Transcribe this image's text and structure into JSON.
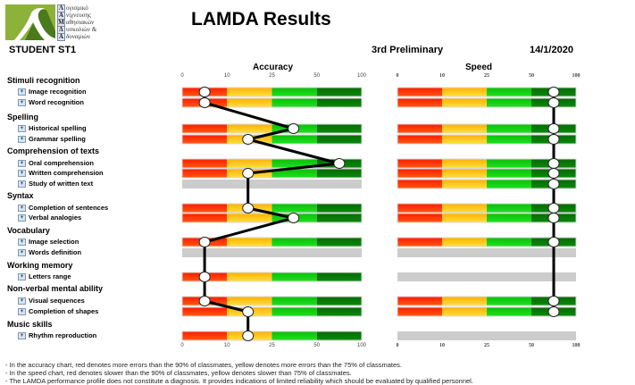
{
  "header": {
    "title": "LAMDA Results",
    "student": "STUDENT ST1",
    "session": "3rd Preliminary",
    "date": "14/1/2020",
    "logo": {
      "glyph": "λ",
      "lines": [
        {
          "cap": "Λ",
          "text": "ογισμικό"
        },
        {
          "cap": "Α",
          "text": "νίχνευσης"
        },
        {
          "cap": "Μ",
          "text": "αθησιακών"
        },
        {
          "cap": "Δ",
          "text": "υσκολιών &"
        },
        {
          "cap": "Α",
          "text": "δυναμιών"
        }
      ]
    }
  },
  "chart_data": [
    {
      "type": "bar",
      "title": "Accuracy",
      "xlabel": "",
      "ylabel": "",
      "tick_labels": [
        "0",
        "10",
        "25",
        "50",
        "100"
      ],
      "zones": [
        {
          "from": 0,
          "to": 10,
          "color": "#ff2a00",
          "meaning": "red"
        },
        {
          "from": 10,
          "to": 25,
          "color": "#ffc800",
          "meaning": "yellow"
        },
        {
          "from": 25,
          "to": 50,
          "color": "#10d010",
          "meaning": "green"
        },
        {
          "from": 50,
          "to": 100,
          "color": "#087a08",
          "meaning": "dark green"
        }
      ],
      "categories": [
        "Image recognition",
        "Word recognition",
        "Historical spelling",
        "Grammar spelling",
        "Oral comprehension",
        "Written comprehension",
        "Study of written text",
        "Completion of sentences",
        "Verbal analogies",
        "Image selection",
        "Words definition",
        "Letters range",
        "Visual sequences",
        "Completion of shapes",
        "Rhythm reproduction"
      ],
      "values": [
        5,
        5,
        37,
        17,
        75,
        17,
        null,
        17,
        37,
        5,
        null,
        5,
        5,
        17,
        17
      ]
    },
    {
      "type": "bar",
      "title": "Speed",
      "xlabel": "",
      "ylabel": "",
      "tick_labels": [
        "0",
        "10",
        "25",
        "50",
        "100"
      ],
      "zones": [
        {
          "from": 0,
          "to": 10,
          "color": "#ff2a00",
          "meaning": "red"
        },
        {
          "from": 10,
          "to": 25,
          "color": "#ffc800",
          "meaning": "yellow"
        },
        {
          "from": 25,
          "to": 50,
          "color": "#10d010",
          "meaning": "green"
        },
        {
          "from": 50,
          "to": 100,
          "color": "#087a08",
          "meaning": "dark green"
        }
      ],
      "categories": [
        "Image recognition",
        "Word recognition",
        "Historical spelling",
        "Grammar spelling",
        "Oral comprehension",
        "Written comprehension",
        "Study of written text",
        "Completion of sentences",
        "Verbal analogies",
        "Image selection",
        "Words definition",
        "Letters range",
        "Visual sequences",
        "Completion of shapes",
        "Rhythm reproduction"
      ],
      "values": [
        75,
        75,
        75,
        75,
        75,
        75,
        75,
        75,
        75,
        75,
        null,
        null,
        75,
        75,
        null
      ]
    }
  ],
  "groups": [
    {
      "name": "Stimuli recognition",
      "items": [
        "Image recognition",
        "Word recognition"
      ]
    },
    {
      "name": "Spelling",
      "items": [
        "Historical spelling",
        "Grammar spelling"
      ]
    },
    {
      "name": "Comprehension of texts",
      "items": [
        "Oral comprehension",
        "Written comprehension",
        "Study of written text"
      ]
    },
    {
      "name": "Syntax",
      "items": [
        "Completion of sentences",
        "Verbal analogies"
      ]
    },
    {
      "name": "Vocabulary",
      "items": [
        "Image selection",
        "Words definition"
      ]
    },
    {
      "name": "Working memory",
      "items": [
        "Letters range"
      ]
    },
    {
      "name": "Non-verbal mental ability",
      "items": [
        "Visual sequences",
        "Completion of shapes"
      ]
    },
    {
      "name": "Music skills",
      "items": [
        "Rhythm reproduction"
      ]
    }
  ],
  "expand_icon": "+",
  "footnotes": [
    "- In the accuracy chart, red denotes more errors than the 90% of classmates, yellow denotes more errors than the 75% of classmates.",
    "- In the speed chart, red denotes slower than the 90% of classmates, yellow denotes slower than 75% of classmates.",
    "- The LAMDA performance profile does not constitute a diagnosis. It provides indications of limited reliability which should be evaluated by qualified personnel."
  ],
  "colors": {
    "disabled_row": "#cccccc",
    "marker_fill": "#ffffff",
    "line": "#000000"
  }
}
